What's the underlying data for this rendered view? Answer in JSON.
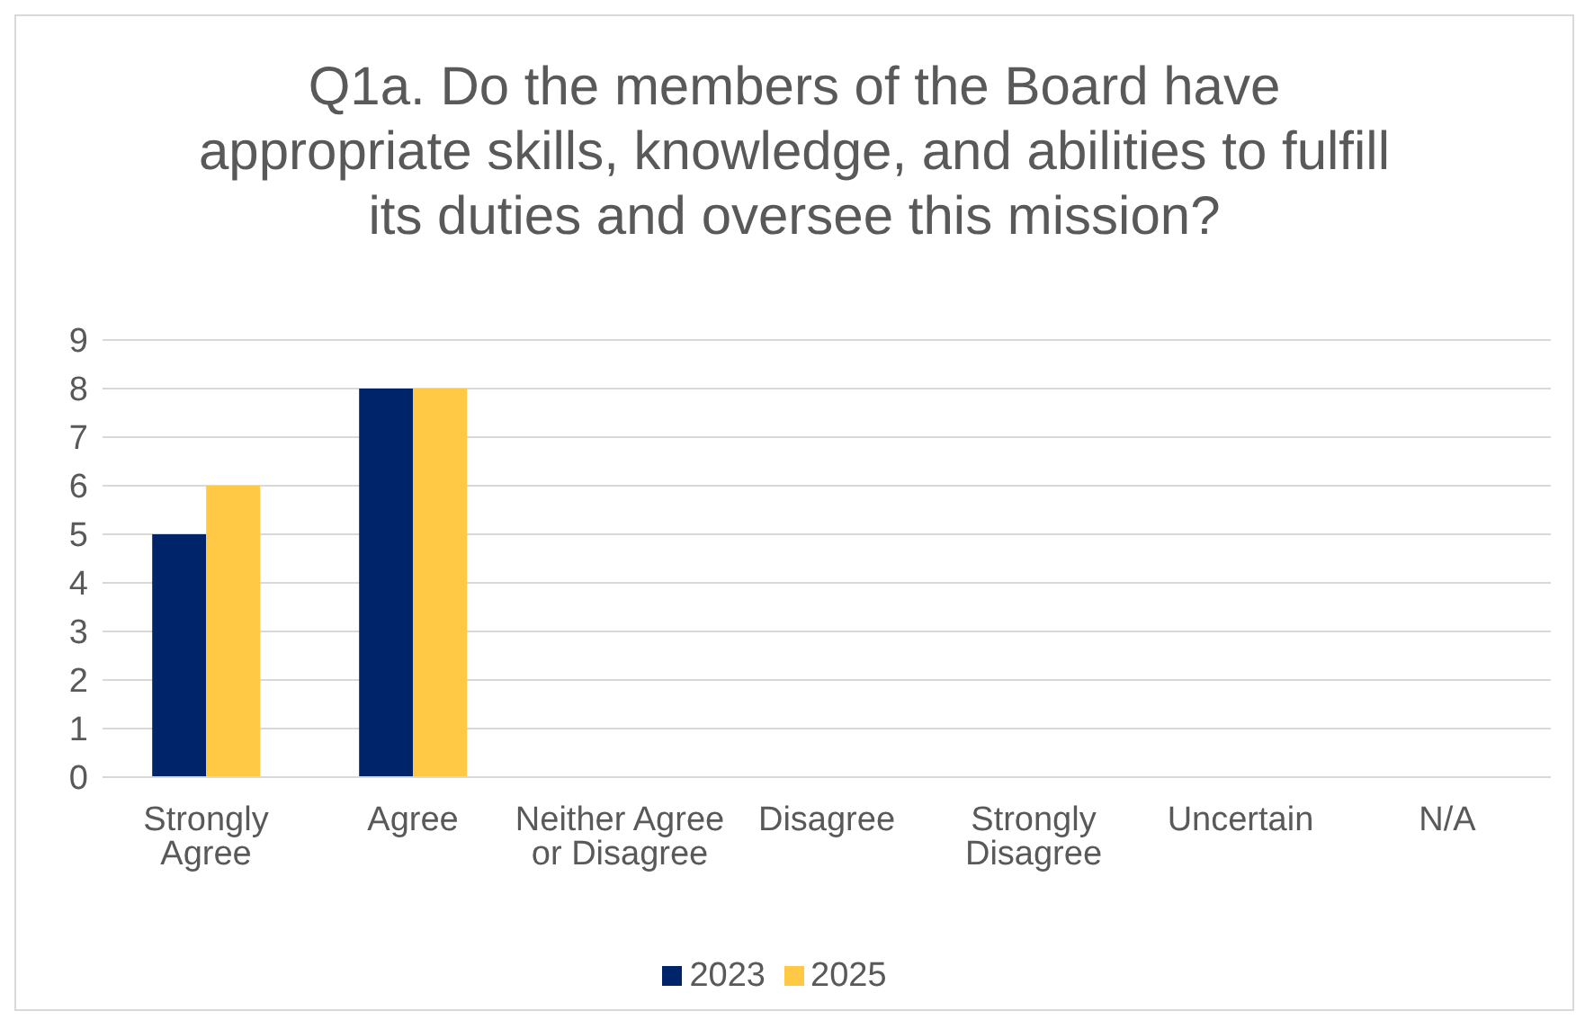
{
  "chart_data": {
    "type": "bar",
    "title": "Q1a. Do the members of the Board have appropriate skills, knowledge, and abilities to fulfill its duties and oversee this mission?",
    "categories": [
      "Strongly Agree",
      "Agree",
      "Neither Agree or Disagree",
      "Disagree",
      "Strongly Disagree",
      "Uncertain",
      "N/A"
    ],
    "series": [
      {
        "name": "2023",
        "color": "#002469",
        "values": [
          5,
          8,
          0,
          0,
          0,
          0,
          0
        ]
      },
      {
        "name": "2025",
        "color": "#ffc845",
        "values": [
          6,
          8,
          0,
          0,
          0,
          0,
          0
        ]
      }
    ],
    "ylim": [
      0,
      9
    ],
    "yticks": [
      0,
      1,
      2,
      3,
      4,
      5,
      6,
      7,
      8,
      9
    ],
    "grid": "y",
    "legend": "bottom"
  }
}
